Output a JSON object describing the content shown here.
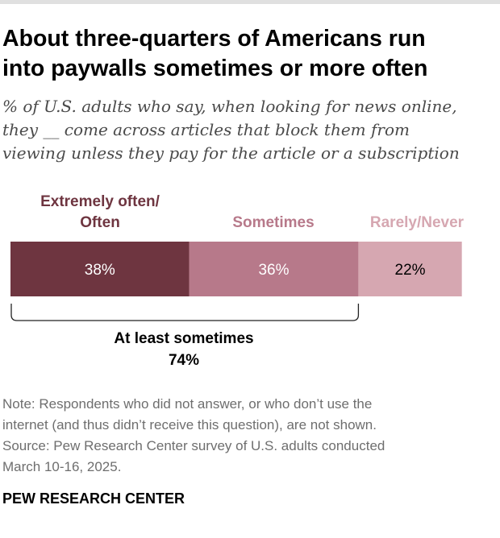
{
  "header": {
    "title_line1": "About three-quarters of Americans run",
    "title_line2": "into paywalls sometimes or more often",
    "subtitle_line1": "% of U.S. adults who say, when looking for news online,",
    "subtitle_line2": "they __ come across articles that block them from",
    "subtitle_line3": "viewing unless they pay for the article or a subscription"
  },
  "chart_data": {
    "type": "bar",
    "orientation": "horizontal-stacked",
    "categories": [
      "Extremely often/ Often",
      "Sometimes",
      "Rarely/Never"
    ],
    "label_lines": [
      [
        "Extremely often/",
        "Often"
      ],
      [
        "Sometimes"
      ],
      [
        "Rarely/Never"
      ]
    ],
    "values": [
      38,
      36,
      22
    ],
    "value_labels": [
      "38%",
      "36%",
      "22%"
    ],
    "colors": [
      "#6e3540",
      "#b7798a",
      "#d6a7b1"
    ],
    "label_colors": [
      "#6e3540",
      "#b7798a",
      "#d6a7b1"
    ],
    "value_text_colors": [
      "#ffffff",
      "#ffffff",
      "#000000"
    ],
    "bracket": {
      "label_line1": "At least sometimes",
      "label_line2": "74%",
      "spans_categories": [
        0,
        1
      ]
    }
  },
  "footer": {
    "note_line1": "Note: Respondents who did not answer, or who don’t use the",
    "note_line2": "internet (and thus didn’t receive this question), are not shown.",
    "source_line1": "Source: Pew Research Center survey of U.S. adults conducted",
    "source_line2": "March 10-16, 2025.",
    "brand": "PEW RESEARCH CENTER"
  }
}
